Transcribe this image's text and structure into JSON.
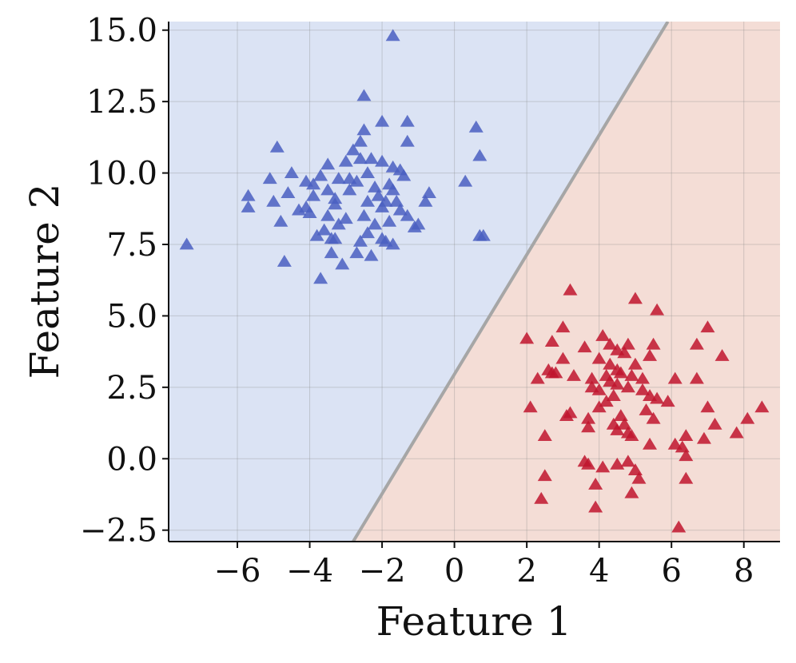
{
  "chart_data": {
    "type": "scatter",
    "title": "",
    "xlabel": "Feature 1",
    "ylabel": "Feature 2",
    "xlim": [
      -7.9,
      9.0
    ],
    "ylim": [
      -2.9,
      15.3
    ],
    "xticks": [
      -6,
      -4,
      -2,
      0,
      2,
      4,
      6,
      8
    ],
    "xtick_labels": [
      "−6",
      "−4",
      "−2",
      "0",
      "2",
      "4",
      "6",
      "8"
    ],
    "yticks": [
      -2.5,
      0.0,
      2.5,
      5.0,
      7.5,
      10.0,
      12.5,
      15.0
    ],
    "ytick_labels": [
      "−2.5",
      "0.0",
      "2.5",
      "5.0",
      "7.5",
      "10.0",
      "12.5",
      "15.0"
    ],
    "grid": true,
    "marker": "triangle",
    "decision_boundary": {
      "points": [
        [
          -2.8,
          -2.9
        ],
        [
          5.9,
          15.3
        ]
      ]
    },
    "regions": [
      {
        "class": 0,
        "side": "upper-left",
        "color": "#dbe3f4"
      },
      {
        "class": 1,
        "side": "lower-right",
        "color": "#f4ddd6"
      }
    ],
    "boundary_color": "#a6a6a6",
    "series": [
      {
        "class": 0,
        "color": "#4a5fc1",
        "points": [
          [
            -1.7,
            14.8
          ],
          [
            -2.5,
            12.7
          ],
          [
            -2.0,
            11.8
          ],
          [
            -1.3,
            11.8
          ],
          [
            0.6,
            11.6
          ],
          [
            -2.5,
            11.5
          ],
          [
            -2.6,
            11.1
          ],
          [
            -1.3,
            11.1
          ],
          [
            -4.9,
            10.9
          ],
          [
            -2.8,
            10.8
          ],
          [
            -2.3,
            10.5
          ],
          [
            0.7,
            10.6
          ],
          [
            -3.0,
            10.4
          ],
          [
            -2.6,
            10.5
          ],
          [
            -2.0,
            10.4
          ],
          [
            -3.5,
            10.3
          ],
          [
            -1.7,
            10.2
          ],
          [
            -1.5,
            10.1
          ],
          [
            -4.5,
            10.0
          ],
          [
            -3.7,
            9.9
          ],
          [
            -2.4,
            10.0
          ],
          [
            -1.4,
            9.9
          ],
          [
            -5.1,
            9.8
          ],
          [
            -4.1,
            9.7
          ],
          [
            -3.2,
            9.8
          ],
          [
            -2.9,
            9.8
          ],
          [
            -2.7,
            9.7
          ],
          [
            -1.8,
            9.6
          ],
          [
            -3.9,
            9.6
          ],
          [
            0.3,
            9.7
          ],
          [
            -3.5,
            9.4
          ],
          [
            -2.9,
            9.4
          ],
          [
            -2.2,
            9.5
          ],
          [
            -1.7,
            9.4
          ],
          [
            -0.7,
            9.3
          ],
          [
            -4.6,
            9.3
          ],
          [
            -5.7,
            9.2
          ],
          [
            -3.9,
            9.2
          ],
          [
            -2.4,
            9.0
          ],
          [
            -1.9,
            9.0
          ],
          [
            -5.0,
            9.0
          ],
          [
            -3.3,
            8.9
          ],
          [
            -4.1,
            8.8
          ],
          [
            -2.0,
            8.8
          ],
          [
            -1.5,
            8.7
          ],
          [
            -0.8,
            9.0
          ],
          [
            -5.7,
            8.8
          ],
          [
            -4.0,
            8.6
          ],
          [
            -2.5,
            8.5
          ],
          [
            -3.5,
            8.5
          ],
          [
            -1.3,
            8.5
          ],
          [
            -1.8,
            8.3
          ],
          [
            -4.8,
            8.3
          ],
          [
            -3.2,
            8.2
          ],
          [
            -2.2,
            8.2
          ],
          [
            -1.0,
            8.2
          ],
          [
            -1.1,
            8.1
          ],
          [
            -2.4,
            7.9
          ],
          [
            -3.6,
            8.0
          ],
          [
            -2.0,
            7.7
          ],
          [
            -3.8,
            7.8
          ],
          [
            -3.3,
            7.7
          ],
          [
            -2.6,
            7.6
          ],
          [
            -1.9,
            7.6
          ],
          [
            -1.7,
            7.5
          ],
          [
            -3.4,
            7.7
          ],
          [
            0.7,
            7.8
          ],
          [
            0.8,
            7.8
          ],
          [
            -7.4,
            7.5
          ],
          [
            -3.4,
            7.2
          ],
          [
            -2.7,
            7.2
          ],
          [
            -2.3,
            7.1
          ],
          [
            -4.7,
            6.9
          ],
          [
            -3.1,
            6.8
          ],
          [
            -3.7,
            6.3
          ],
          [
            -3.0,
            8.4
          ],
          [
            -4.3,
            8.7
          ],
          [
            -2.1,
            9.2
          ],
          [
            -3.3,
            9.1
          ],
          [
            -1.6,
            9.0
          ]
        ]
      },
      {
        "class": 1,
        "color": "#c0152e",
        "points": [
          [
            3.2,
            5.9
          ],
          [
            5.0,
            5.6
          ],
          [
            5.6,
            5.2
          ],
          [
            3.0,
            4.6
          ],
          [
            7.0,
            4.6
          ],
          [
            4.1,
            4.3
          ],
          [
            4.3,
            4.0
          ],
          [
            4.5,
            3.8
          ],
          [
            2.7,
            4.1
          ],
          [
            2.0,
            4.2
          ],
          [
            4.8,
            4.0
          ],
          [
            5.5,
            4.0
          ],
          [
            6.7,
            4.0
          ],
          [
            3.6,
            3.9
          ],
          [
            4.7,
            3.7
          ],
          [
            5.4,
            3.6
          ],
          [
            7.4,
            3.6
          ],
          [
            3.0,
            3.5
          ],
          [
            4.0,
            3.5
          ],
          [
            4.3,
            3.3
          ],
          [
            5.0,
            3.3
          ],
          [
            4.5,
            3.1
          ],
          [
            2.6,
            3.1
          ],
          [
            2.8,
            3.0
          ],
          [
            4.9,
            2.9
          ],
          [
            5.2,
            2.8
          ],
          [
            3.8,
            2.8
          ],
          [
            4.3,
            2.7
          ],
          [
            6.1,
            2.8
          ],
          [
            6.7,
            2.8
          ],
          [
            2.3,
            2.8
          ],
          [
            2.7,
            3.0
          ],
          [
            3.3,
            2.9
          ],
          [
            4.5,
            2.6
          ],
          [
            4.8,
            2.5
          ],
          [
            4.0,
            2.4
          ],
          [
            3.8,
            2.5
          ],
          [
            5.2,
            2.4
          ],
          [
            5.4,
            2.2
          ],
          [
            5.6,
            2.1
          ],
          [
            4.4,
            2.2
          ],
          [
            4.2,
            2.0
          ],
          [
            5.9,
            2.0
          ],
          [
            4.0,
            1.8
          ],
          [
            7.0,
            1.8
          ],
          [
            2.1,
            1.8
          ],
          [
            8.5,
            1.8
          ],
          [
            3.2,
            1.6
          ],
          [
            4.6,
            1.5
          ],
          [
            3.7,
            1.4
          ],
          [
            8.1,
            1.4
          ],
          [
            5.5,
            1.4
          ],
          [
            4.7,
            1.2
          ],
          [
            4.4,
            1.2
          ],
          [
            7.2,
            1.2
          ],
          [
            3.7,
            1.1
          ],
          [
            4.5,
            1.0
          ],
          [
            4.8,
            0.9
          ],
          [
            4.9,
            0.8
          ],
          [
            6.4,
            0.8
          ],
          [
            6.9,
            0.7
          ],
          [
            2.5,
            0.8
          ],
          [
            7.8,
            0.9
          ],
          [
            6.3,
            0.4
          ],
          [
            6.1,
            0.5
          ],
          [
            5.4,
            0.5
          ],
          [
            6.4,
            0.1
          ],
          [
            3.6,
            -0.1
          ],
          [
            3.7,
            -0.2
          ],
          [
            4.8,
            -0.1
          ],
          [
            4.5,
            -0.2
          ],
          [
            4.1,
            -0.3
          ],
          [
            5.0,
            -0.4
          ],
          [
            2.5,
            -0.6
          ],
          [
            5.1,
            -0.7
          ],
          [
            6.4,
            -0.7
          ],
          [
            3.9,
            -0.9
          ],
          [
            4.9,
            -1.2
          ],
          [
            2.4,
            -1.4
          ],
          [
            3.9,
            -1.7
          ],
          [
            6.2,
            -2.4
          ],
          [
            4.2,
            2.9
          ],
          [
            4.6,
            3.0
          ],
          [
            5.3,
            1.7
          ],
          [
            3.1,
            1.5
          ]
        ]
      }
    ]
  }
}
